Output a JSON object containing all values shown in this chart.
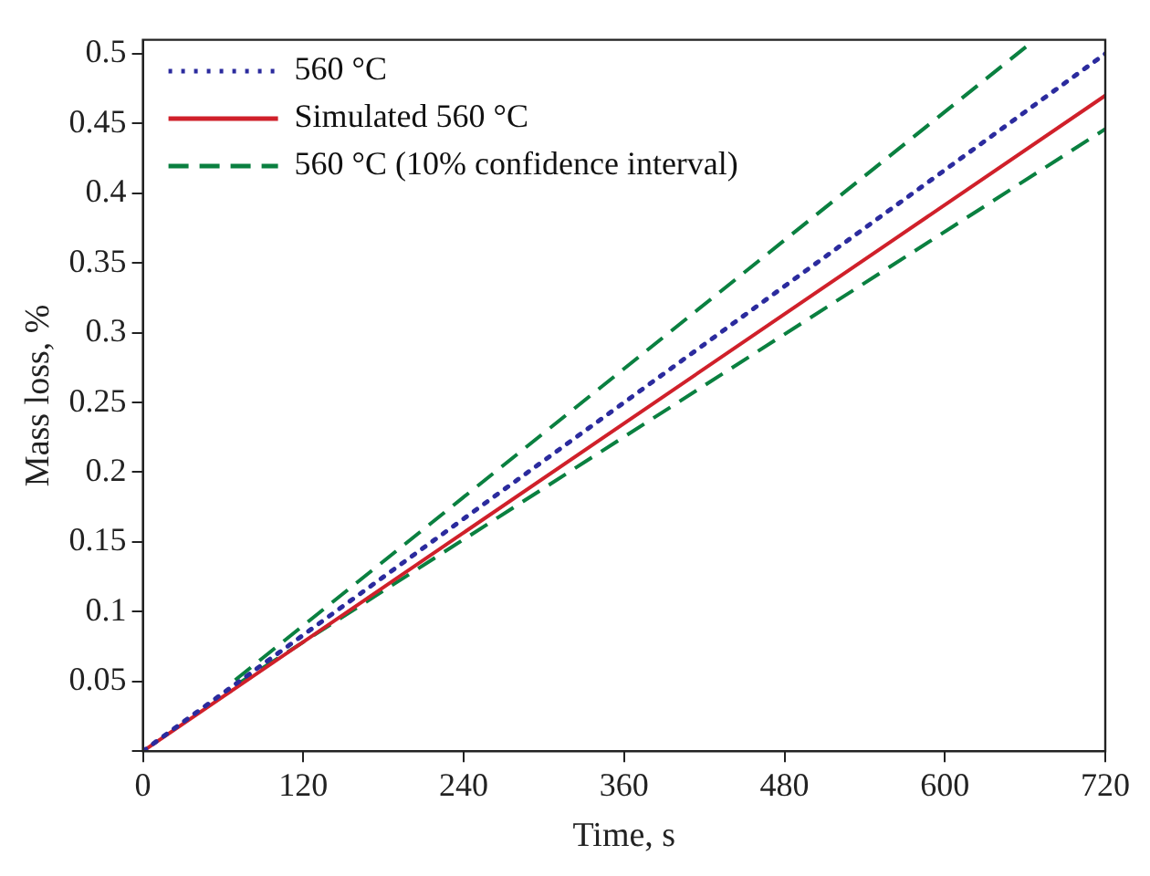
{
  "chart_data": {
    "type": "line",
    "xlabel": "Time, s",
    "ylabel": "Mass loss, %",
    "xlim": [
      0,
      720
    ],
    "xticks": [
      0,
      120,
      240,
      360,
      480,
      600,
      720
    ],
    "ylim": [
      0,
      0.51
    ],
    "yticks": [
      {
        "value": 0,
        "label": null
      },
      0.05,
      0.1,
      0.15,
      0.2,
      0.25,
      0.3,
      0.35,
      0.4,
      0.45,
      0.5
    ],
    "grid": false,
    "legend": "top left",
    "marker": "none",
    "series": [
      {
        "name": "560 °C",
        "color": "#2b2b9e",
        "line_style": "dotted",
        "x": [
          0,
          720
        ],
        "values": [
          0,
          0.5
        ]
      },
      {
        "name": "Simulated 560 °C",
        "color": "#d0202a",
        "line_style": "solid",
        "x": [
          0,
          720
        ],
        "values": [
          0,
          0.47
        ]
      },
      {
        "name": "560 °C (10% confidence interval)",
        "color": "#0a8040",
        "line_style": "dashed",
        "x": [
          69,
          666
        ],
        "values": [
          0.051,
          0.509
        ]
      },
      {
        "color": "#0a8040",
        "line_style": "dashed",
        "x": [
          69,
          720
        ],
        "values": [
          0.047,
          0.446
        ]
      }
    ]
  }
}
